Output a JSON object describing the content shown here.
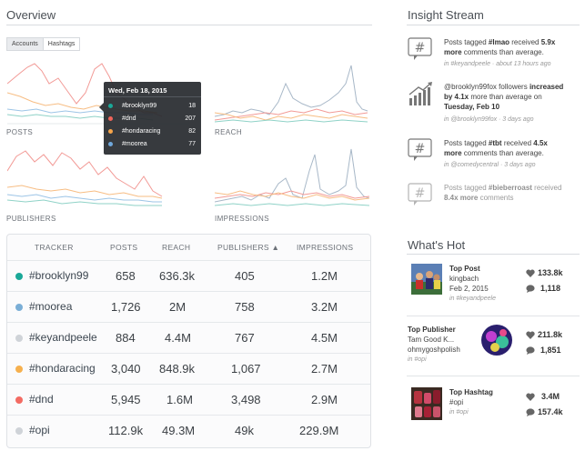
{
  "overview": {
    "title": "Overview",
    "tabs": [
      "Accounts",
      "Hashtags"
    ]
  },
  "charts": {
    "labels": [
      "POSTS",
      "REACH",
      "PUBLISHERS",
      "IMPRESSIONS"
    ]
  },
  "tooltip": {
    "date": "Wed, Feb 18, 2015",
    "rows": [
      {
        "tag": "#brooklyn99",
        "value": "18",
        "color": "#1aa898"
      },
      {
        "tag": "#dnd",
        "value": "207",
        "color": "#f0645a"
      },
      {
        "tag": "#hondaracing",
        "value": "82",
        "color": "#f6a54a"
      },
      {
        "tag": "#moorea",
        "value": "77",
        "color": "#6fa8dc"
      }
    ]
  },
  "table": {
    "headers": [
      "TRACKER",
      "POSTS",
      "REACH",
      "PUBLISHERS ▲",
      "IMPRESSIONS"
    ],
    "rows": [
      {
        "tag": "#brooklyn99",
        "color": "#1aa898",
        "posts": "658",
        "reach": "636.3k",
        "publishers": "405",
        "impressions": "1.2M"
      },
      {
        "tag": "#moorea",
        "color": "#7aaed6",
        "posts": "1,726",
        "reach": "2M",
        "publishers": "758",
        "impressions": "3.2M"
      },
      {
        "tag": "#keyandpeele",
        "color": "#cfd3d8",
        "posts": "884",
        "reach": "4.4M",
        "publishers": "767",
        "impressions": "4.5M"
      },
      {
        "tag": "#hondaracing",
        "color": "#f6b04e",
        "posts": "3,040",
        "reach": "848.9k",
        "publishers": "1,067",
        "impressions": "2.7M"
      },
      {
        "tag": "#dnd",
        "color": "#f36b63",
        "posts": "5,945",
        "reach": "1.6M",
        "publishers": "3,498",
        "impressions": "2.9M"
      },
      {
        "tag": "#opi",
        "color": "#cfd3d8",
        "posts": "112.9k",
        "reach": "49.3M",
        "publishers": "49k",
        "impressions": "229.9M"
      }
    ]
  },
  "insight": {
    "title": "Insight Stream",
    "items": [
      {
        "icon": "hashtag-icon",
        "t1": "Posts tagged ",
        "b1": "#lmao",
        "t2": " received ",
        "b2": "5.9x more",
        "t3": " comments than average.",
        "meta": "in #keyandpeele · about 13 hours ago"
      },
      {
        "icon": "growth-chart-icon",
        "t1": "@brooklyn99fox followers ",
        "b1": "increased by 4.1x",
        "t2": " more than average on ",
        "b2": "Tuesday, Feb 10",
        "t3": "",
        "meta": "in @brooklyn99fox · 3 days ago"
      },
      {
        "icon": "hashtag-icon",
        "t1": "Posts tagged ",
        "b1": "#tbt",
        "t2": " received ",
        "b2": "4.5x more",
        "t3": " comments than average.",
        "meta": "in @comedycentral · 3 days ago"
      },
      {
        "icon": "hashtag-icon",
        "t1": "Posts tagged ",
        "b1": "#bieberroast",
        "t2": " received ",
        "b2": "8.4x more",
        "t3": " comments",
        "meta": ""
      }
    ]
  },
  "hot": {
    "title": "What's Hot",
    "cards": [
      {
        "title": "Top Post",
        "sub1": "kingbach",
        "sub2": "Feb 2, 2015",
        "tag": "in #keyandpeele",
        "likes": "133.8k",
        "comments": "1,118"
      },
      {
        "title": "Top Publisher",
        "sub1": "Tam Good K...",
        "sub2": "ohmygoshpolish",
        "tag": "in #opi",
        "likes": "211.8k",
        "comments": "1,851"
      },
      {
        "title": "Top Hashtag",
        "sub1": "#opi",
        "sub2": "",
        "tag": "in #opi",
        "likes": "3.4M",
        "comments": "157.4k"
      }
    ]
  }
}
